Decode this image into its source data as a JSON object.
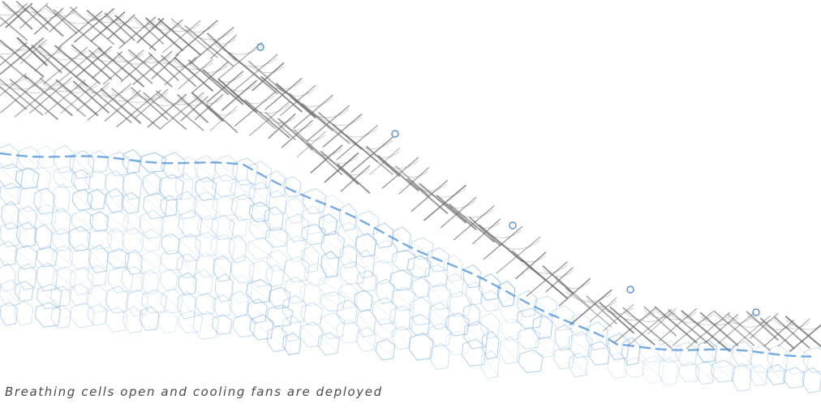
{
  "caption": "Breathing cells open and cooling fans are deployed",
  "colors": {
    "background": "#ffffff",
    "upper_canopy": "#6f6f6f",
    "lower_cells": "#8fb9e0",
    "accent_blue": "#4a8fd6",
    "fan_indicator": "#5b8fd0",
    "caption_text": "#4a4a4a"
  },
  "diagram": {
    "upper_layer": "upper-canopy-structure",
    "lower_layer": "breathing-cells-mesh",
    "indicator_count": 5
  }
}
